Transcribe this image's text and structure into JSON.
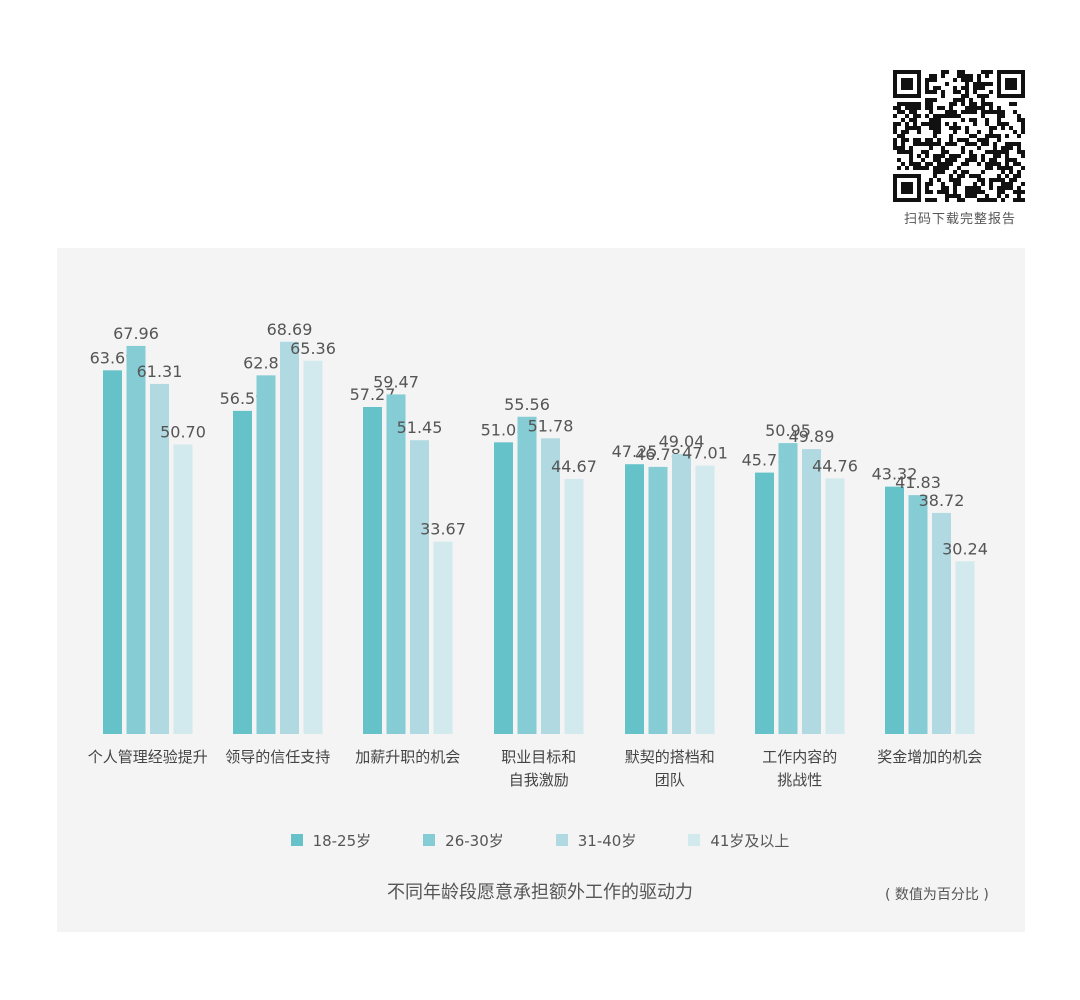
{
  "qr_caption": "扫码下载完整报告",
  "chart_data": {
    "type": "bar",
    "title": "不同年龄段愿意承担额外工作的驱动力",
    "unit_note": "( 数值为百分比 )",
    "categories": [
      [
        "个人管理经验提升"
      ],
      [
        "领导的信任支持"
      ],
      [
        "加薪升职的机会"
      ],
      [
        "职业目标和",
        "自我激励"
      ],
      [
        "默契的搭档和",
        "团队"
      ],
      [
        "工作内容的",
        "挑战性"
      ],
      [
        "奖金增加的机会"
      ]
    ],
    "series": [
      {
        "name": "18-25岁",
        "color": "#66c2c9",
        "values": [
          63.69,
          56.59,
          57.27,
          51.08,
          47.25,
          45.78,
          43.32
        ]
      },
      {
        "name": "26-30岁",
        "color": "#85ccd5",
        "values": [
          67.96,
          62.81,
          59.47,
          55.56,
          46.78,
          50.95,
          41.83
        ]
      },
      {
        "name": "31-40岁",
        "color": "#b0d9e1",
        "values": [
          61.31,
          68.69,
          51.45,
          51.78,
          49.04,
          49.89,
          38.72
        ]
      },
      {
        "name": "41岁及以上",
        "color": "#d2e9ee",
        "values": [
          50.7,
          65.36,
          33.67,
          44.67,
          47.01,
          44.76,
          30.24
        ]
      }
    ],
    "ylim": [
      0,
      72
    ],
    "grid": false,
    "legend_position": "bottom"
  }
}
